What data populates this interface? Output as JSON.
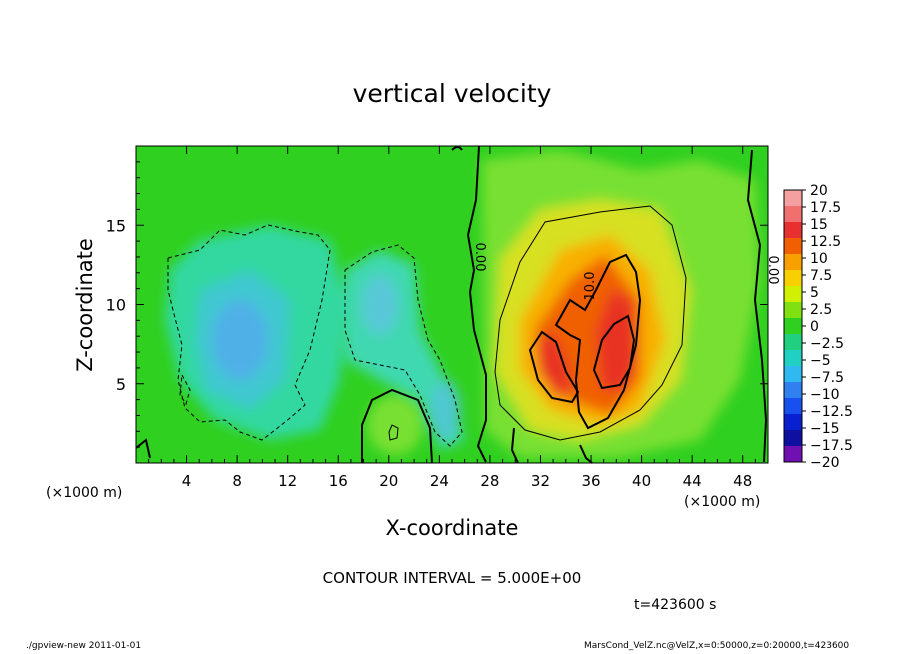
{
  "chart_data": {
    "type": "heatmap",
    "title": "vertical velocity",
    "xlabel": "X-coordinate",
    "ylabel": "Z-coordinate",
    "x_unit_left": "(×1000 m)",
    "x_unit_right": "(×1000 m)",
    "xlim": [
      0,
      50
    ],
    "ylim": [
      0,
      20
    ],
    "x_ticks": [
      "4",
      "8",
      "12",
      "16",
      "20",
      "24",
      "28",
      "32",
      "36",
      "40",
      "44",
      "48"
    ],
    "x_tick_values": [
      4,
      8,
      12,
      16,
      20,
      24,
      28,
      32,
      36,
      40,
      44,
      48
    ],
    "y_ticks": [
      "5",
      "10",
      "15"
    ],
    "y_tick_values": [
      5,
      10,
      15
    ],
    "colorbar": {
      "labels": [
        "20",
        "17.5",
        "15",
        "12.5",
        "10",
        "7.5",
        "5",
        "2.5",
        "0",
        "−2.5",
        "−5",
        "−7.5",
        "−10",
        "−12.5",
        "−15",
        "−17.5",
        "−20"
      ],
      "colors": [
        "#f5a0a0",
        "#f07070",
        "#e83030",
        "#f06000",
        "#f8a000",
        "#f8d000",
        "#d0f000",
        "#80e010",
        "#30d020",
        "#20d080",
        "#20d0c0",
        "#30b8f0",
        "#3080f0",
        "#1850f0",
        "#0820d0",
        "#1010a0",
        "#7010b0"
      ]
    },
    "contour_labels": [
      {
        "text": "0.00",
        "x": 25.8,
        "z": 13.3
      },
      {
        "text": "10.0",
        "x": 35.9,
        "z": 11.0
      },
      {
        "text": "0.00",
        "x": 48.8,
        "z": 12.3
      }
    ],
    "features": [
      {
        "kind": "updraft core",
        "x": 37.0,
        "z": 7.0,
        "peak": 15
      },
      {
        "kind": "updraft core",
        "x": 33.0,
        "z": 6.5,
        "peak": 12.5
      },
      {
        "kind": "downdraft",
        "x": 8.0,
        "z": 8.0,
        "min": -7.5
      },
      {
        "kind": "downdraft",
        "x": 19.5,
        "z": 10.0,
        "min": -5
      }
    ],
    "contour_interval": "CONTOUR INTERVAL = 5.000E+00",
    "time_label": "t=423600 s"
  },
  "footer": {
    "left": "./gpview-new   2011-01-01",
    "right": "MarsCond_VelZ.nc@VelZ,x=0:50000,z=0:20000,t=423600"
  }
}
